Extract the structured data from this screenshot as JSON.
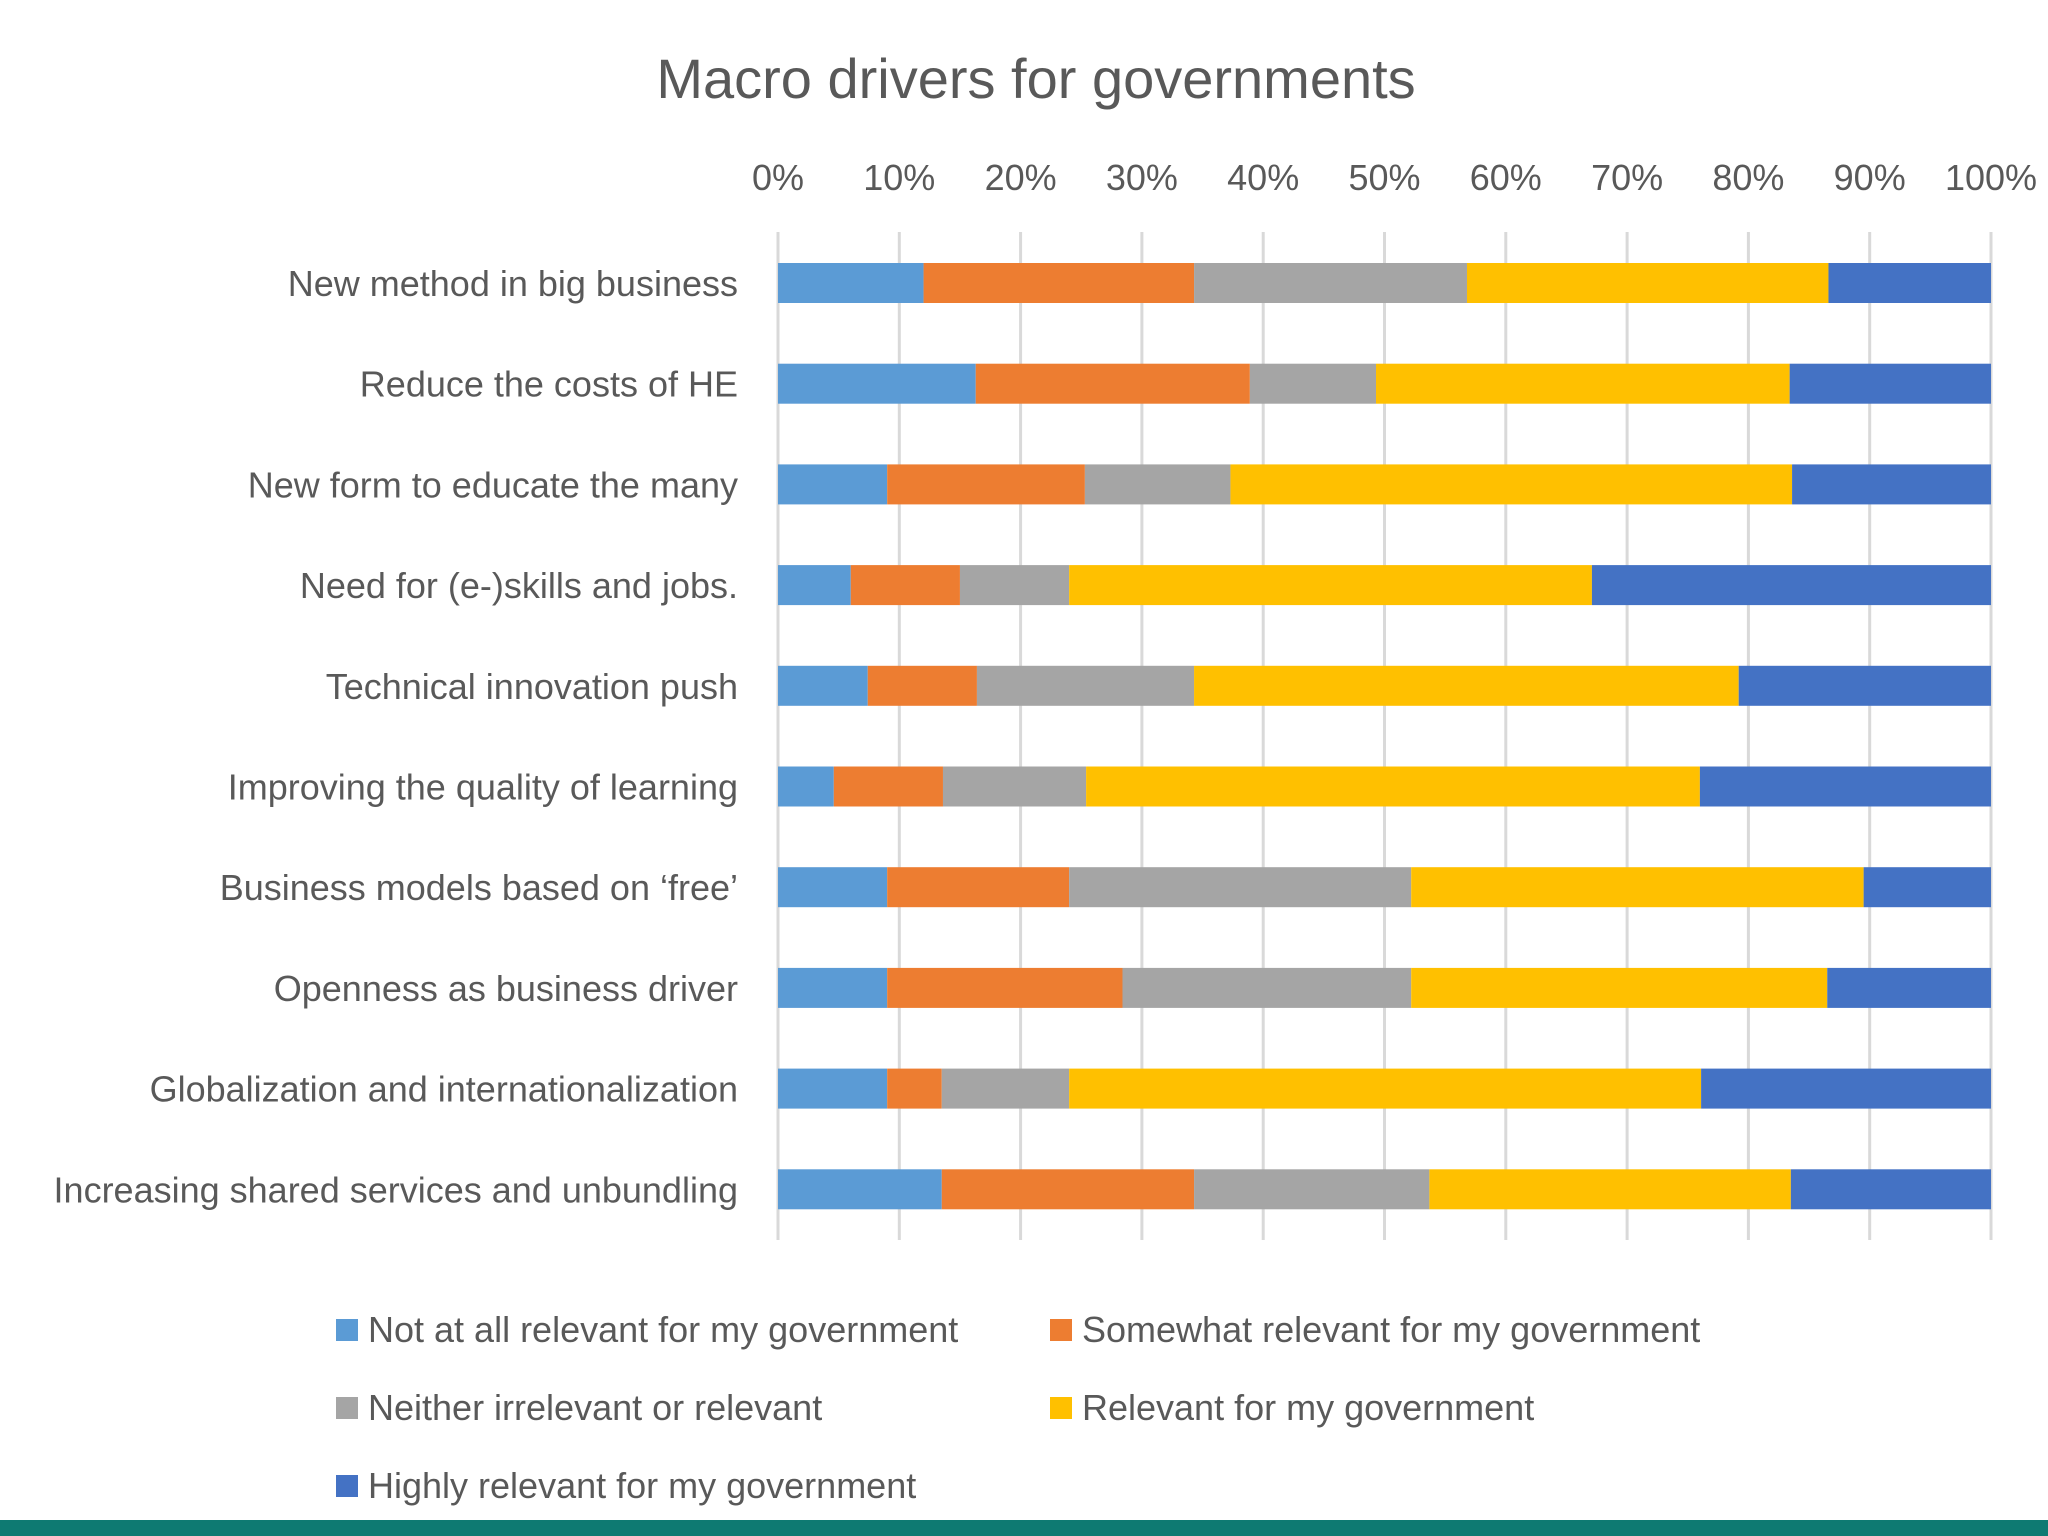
{
  "chart_data": {
    "type": "bar",
    "orientation": "horizontal",
    "stacked": "percent",
    "title": "Macro drivers for governments",
    "xlabel": "",
    "ylabel": "",
    "xlim": [
      0,
      100
    ],
    "x_ticks": [
      "0%",
      "10%",
      "20%",
      "30%",
      "40%",
      "50%",
      "60%",
      "70%",
      "80%",
      "90%",
      "100%"
    ],
    "grid": true,
    "legend_position": "bottom",
    "categories": [
      "New method in big business",
      "Reduce the costs of HE",
      "New form to educate the many",
      "Need for (e-)skills and jobs.",
      "Technical innovation push",
      "Improving the quality of learning",
      "Business models based on ‘free’",
      "Openness as  business driver",
      "Globalization and internationalization",
      "Increasing shared services and unbundling"
    ],
    "series": [
      {
        "name": "Not at all relevant for my government",
        "color": "#5b9bd5",
        "values": [
          12,
          16.3,
          9,
          6,
          7.4,
          4.6,
          9,
          9,
          9,
          13.5
        ]
      },
      {
        "name": "Somewhat relevant for my government",
        "color": "#ed7d31",
        "values": [
          22.3,
          22.6,
          16.3,
          9,
          9,
          9,
          15,
          19.4,
          4.5,
          20.8
        ]
      },
      {
        "name": "Neither irrelevant or relevant",
        "color": "#a5a5a5",
        "values": [
          22.5,
          10.4,
          12,
          9,
          17.9,
          11.8,
          28.2,
          23.8,
          10.5,
          19.4
        ]
      },
      {
        "name": "Relevant for my government",
        "color": "#ffc000",
        "values": [
          29.8,
          34.1,
          46.3,
          43.1,
          44.9,
          50.6,
          37.3,
          34.3,
          52.1,
          29.8
        ]
      },
      {
        "name": "Highly relevant for my government",
        "color": "#4472c4",
        "values": [
          13.4,
          16.6,
          16.4,
          32.9,
          20.8,
          24,
          10.5,
          13.5,
          23.9,
          16.5
        ]
      }
    ]
  }
}
